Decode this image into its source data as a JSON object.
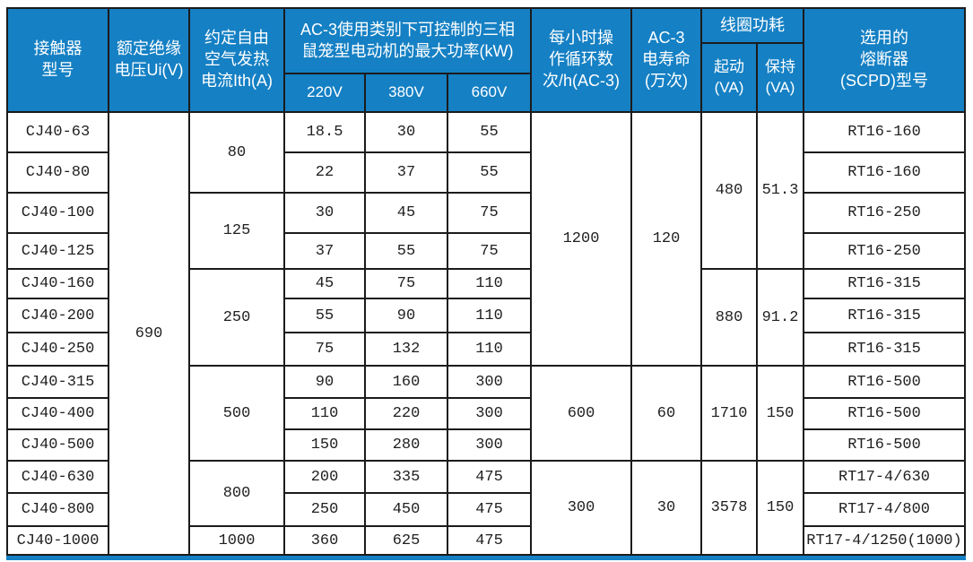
{
  "header": {
    "model": "接触器\n型号",
    "ui": "额定绝缘\n电压Ui(V)",
    "ith": "约定自由\n空气发热\n电流Ith(A)",
    "power_group": "AC-3使用类别下可控制的三相\n鼠笼型电动机的最大功率(kW)",
    "v220": "220V",
    "v380": "380V",
    "v660": "660V",
    "ops": "每小时操\n作循环数\n次/h(AC-3)",
    "life": "AC-3\n电寿命\n(万次)",
    "coil_group": "线圈功耗",
    "coil_start": "起动\n(VA)",
    "coil_hold": "保持\n(VA)",
    "scpd": "选用的\n熔断器\n(SCPD)型号"
  },
  "rows": [
    {
      "model": "CJ40-63",
      "p220": "18.5",
      "p380": "30",
      "p660": "55",
      "scpd": "RT16-160"
    },
    {
      "model": "CJ40-80",
      "p220": "22",
      "p380": "37",
      "p660": "55",
      "scpd": "RT16-160"
    },
    {
      "model": "CJ40-100",
      "p220": "30",
      "p380": "45",
      "p660": "75",
      "scpd": "RT16-250"
    },
    {
      "model": "CJ40-125",
      "p220": "37",
      "p380": "55",
      "p660": "75",
      "scpd": "RT16-250"
    },
    {
      "model": "CJ40-160",
      "p220": "45",
      "p380": "75",
      "p660": "110",
      "scpd": "RT16-315"
    },
    {
      "model": "CJ40-200",
      "p220": "55",
      "p380": "90",
      "p660": "110",
      "scpd": "RT16-315"
    },
    {
      "model": "CJ40-250",
      "p220": "75",
      "p380": "132",
      "p660": "110",
      "scpd": "RT16-315"
    },
    {
      "model": "CJ40-315",
      "p220": "90",
      "p380": "160",
      "p660": "300",
      "scpd": "RT16-500"
    },
    {
      "model": "CJ40-400",
      "p220": "110",
      "p380": "220",
      "p660": "300",
      "scpd": "RT16-500"
    },
    {
      "model": "CJ40-500",
      "p220": "150",
      "p380": "280",
      "p660": "300",
      "scpd": "RT16-500"
    },
    {
      "model": "CJ40-630",
      "p220": "200",
      "p380": "335",
      "p660": "475",
      "scpd": "RT17-4/630"
    },
    {
      "model": "CJ40-800",
      "p220": "250",
      "p380": "450",
      "p660": "475",
      "scpd": "RT17-4/800"
    },
    {
      "model": "CJ40-1000",
      "p220": "360",
      "p380": "625",
      "p660": "475",
      "scpd": "RT17-4/1250(1000)"
    }
  ],
  "merges": {
    "ui": [
      {
        "value": "690",
        "row": 1,
        "span": 13
      }
    ],
    "ith": [
      {
        "value": "80",
        "row": 1,
        "span": 2
      },
      {
        "value": "125",
        "row": 3,
        "span": 2
      },
      {
        "value": "250",
        "row": 5,
        "span": 3
      },
      {
        "value": "500",
        "row": 8,
        "span": 3
      },
      {
        "value": "800",
        "row": 11,
        "span": 2
      },
      {
        "value": "1000",
        "row": 13,
        "span": 1
      }
    ],
    "ops": [
      {
        "value": "1200",
        "row": 1,
        "span": 7
      },
      {
        "value": "600",
        "row": 8,
        "span": 3
      },
      {
        "value": "300",
        "row": 11,
        "span": 3
      }
    ],
    "life": [
      {
        "value": "120",
        "row": 1,
        "span": 7
      },
      {
        "value": "60",
        "row": 8,
        "span": 3
      },
      {
        "value": "30",
        "row": 11,
        "span": 3
      }
    ],
    "start": [
      {
        "value": "480",
        "row": 1,
        "span": 4
      },
      {
        "value": "880",
        "row": 5,
        "span": 3
      },
      {
        "value": "1710",
        "row": 8,
        "span": 3
      },
      {
        "value": "3578",
        "row": 11,
        "span": 3
      }
    ],
    "hold": [
      {
        "value": "51.3",
        "row": 1,
        "span": 4
      },
      {
        "value": "91.2",
        "row": 5,
        "span": 3
      },
      {
        "value": "150",
        "row": 8,
        "span": 3
      },
      {
        "value": "150",
        "row": 11,
        "span": 3
      }
    ]
  },
  "colors": {
    "header_bg": "#1580c4",
    "header_text": "#ffffff",
    "border": "#1b1b1b",
    "cell_bg": "#ffffff",
    "body_text": "#1f1f1f",
    "accent_bar": "#1580c4"
  }
}
